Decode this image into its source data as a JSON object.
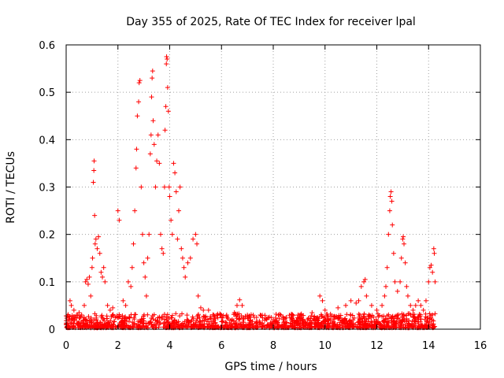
{
  "chart_data": {
    "type": "scatter",
    "title": "Day 355 of 2025, Rate Of TEC Index for receiver lpal",
    "xlabel": "GPS time / hours",
    "ylabel": "ROTI / TECUs",
    "xlim": [
      0,
      16
    ],
    "ylim": [
      0,
      0.6
    ],
    "x_ticks": [
      0,
      2,
      4,
      6,
      8,
      10,
      12,
      14,
      16
    ],
    "x_tick_labels": [
      "0",
      "2",
      "4",
      "6",
      "8",
      "10",
      "12",
      "14",
      "16"
    ],
    "y_ticks": [
      0,
      0.1,
      0.2,
      0.3,
      0.4,
      0.5,
      0.6
    ],
    "y_tick_labels": [
      "0",
      "0.1",
      "0.2",
      "0.3",
      "0.4",
      "0.5",
      "0.6"
    ],
    "grid": true,
    "marker": "plus",
    "color": "#ff0000",
    "series": [
      {
        "name": "ROTI",
        "points": [
          [
            0.05,
            0.012
          ],
          [
            0.1,
            0.02
          ],
          [
            0.15,
            0.06
          ],
          [
            0.2,
            0.05
          ],
          [
            0.3,
            0.04
          ],
          [
            0.4,
            0.03
          ],
          [
            0.5,
            0.035
          ],
          [
            0.6,
            0.03
          ],
          [
            0.7,
            0.05
          ],
          [
            0.75,
            0.1
          ],
          [
            0.8,
            0.105
          ],
          [
            0.85,
            0.095
          ],
          [
            0.9,
            0.11
          ],
          [
            0.95,
            0.07
          ],
          [
            1.0,
            0.13
          ],
          [
            1.02,
            0.15
          ],
          [
            1.05,
            0.31
          ],
          [
            1.07,
            0.335
          ],
          [
            1.08,
            0.355
          ],
          [
            1.1,
            0.24
          ],
          [
            1.12,
            0.18
          ],
          [
            1.15,
            0.19
          ],
          [
            1.2,
            0.17
          ],
          [
            1.25,
            0.195
          ],
          [
            1.3,
            0.16
          ],
          [
            1.35,
            0.12
          ],
          [
            1.4,
            0.11
          ],
          [
            1.45,
            0.13
          ],
          [
            1.5,
            0.1
          ],
          [
            1.6,
            0.05
          ],
          [
            1.7,
            0.04
          ],
          [
            1.8,
            0.045
          ],
          [
            2.0,
            0.25
          ],
          [
            2.05,
            0.23
          ],
          [
            2.2,
            0.06
          ],
          [
            2.3,
            0.05
          ],
          [
            2.4,
            0.1
          ],
          [
            2.5,
            0.09
          ],
          [
            2.55,
            0.13
          ],
          [
            2.6,
            0.18
          ],
          [
            2.65,
            0.25
          ],
          [
            2.7,
            0.34
          ],
          [
            2.72,
            0.38
          ],
          [
            2.75,
            0.45
          ],
          [
            2.8,
            0.48
          ],
          [
            2.82,
            0.52
          ],
          [
            2.85,
            0.525
          ],
          [
            2.9,
            0.3
          ],
          [
            2.95,
            0.2
          ],
          [
            3.0,
            0.14
          ],
          [
            3.05,
            0.11
          ],
          [
            3.1,
            0.07
          ],
          [
            3.15,
            0.15
          ],
          [
            3.2,
            0.2
          ],
          [
            3.25,
            0.37
          ],
          [
            3.28,
            0.41
          ],
          [
            3.3,
            0.49
          ],
          [
            3.32,
            0.53
          ],
          [
            3.34,
            0.545
          ],
          [
            3.36,
            0.44
          ],
          [
            3.4,
            0.39
          ],
          [
            3.45,
            0.3
          ],
          [
            3.5,
            0.355
          ],
          [
            3.55,
            0.41
          ],
          [
            3.6,
            0.35
          ],
          [
            3.65,
            0.2
          ],
          [
            3.7,
            0.17
          ],
          [
            3.75,
            0.16
          ],
          [
            3.8,
            0.3
          ],
          [
            3.82,
            0.42
          ],
          [
            3.85,
            0.47
          ],
          [
            3.87,
            0.56
          ],
          [
            3.88,
            0.575
          ],
          [
            3.9,
            0.57
          ],
          [
            3.92,
            0.51
          ],
          [
            3.95,
            0.46
          ],
          [
            3.98,
            0.3
          ],
          [
            4.0,
            0.28
          ],
          [
            4.05,
            0.23
          ],
          [
            4.1,
            0.2
          ],
          [
            4.15,
            0.35
          ],
          [
            4.2,
            0.33
          ],
          [
            4.25,
            0.29
          ],
          [
            4.3,
            0.19
          ],
          [
            4.35,
            0.25
          ],
          [
            4.4,
            0.3
          ],
          [
            4.45,
            0.17
          ],
          [
            4.5,
            0.15
          ],
          [
            4.55,
            0.13
          ],
          [
            4.6,
            0.11
          ],
          [
            4.7,
            0.14
          ],
          [
            4.8,
            0.15
          ],
          [
            4.9,
            0.19
          ],
          [
            5.0,
            0.2
          ],
          [
            5.05,
            0.18
          ],
          [
            5.1,
            0.07
          ],
          [
            5.2,
            0.045
          ],
          [
            5.3,
            0.04
          ],
          [
            5.5,
            0.04
          ],
          [
            5.7,
            0.03
          ],
          [
            6.0,
            0.025
          ],
          [
            6.2,
            0.03
          ],
          [
            6.5,
            0.035
          ],
          [
            6.6,
            0.05
          ],
          [
            6.7,
            0.062
          ],
          [
            6.8,
            0.05
          ],
          [
            7.0,
            0.03
          ],
          [
            7.5,
            0.03
          ],
          [
            8.0,
            0.02
          ],
          [
            8.5,
            0.025
          ],
          [
            9.0,
            0.03
          ],
          [
            9.5,
            0.035
          ],
          [
            9.8,
            0.07
          ],
          [
            9.9,
            0.06
          ],
          [
            10.0,
            0.04
          ],
          [
            10.5,
            0.045
          ],
          [
            10.8,
            0.05
          ],
          [
            11.0,
            0.06
          ],
          [
            11.2,
            0.055
          ],
          [
            11.3,
            0.06
          ],
          [
            11.4,
            0.09
          ],
          [
            11.5,
            0.1
          ],
          [
            11.55,
            0.105
          ],
          [
            11.6,
            0.07
          ],
          [
            11.8,
            0.05
          ],
          [
            12.0,
            0.04
          ],
          [
            12.2,
            0.05
          ],
          [
            12.3,
            0.07
          ],
          [
            12.35,
            0.09
          ],
          [
            12.4,
            0.13
          ],
          [
            12.45,
            0.2
          ],
          [
            12.5,
            0.25
          ],
          [
            12.52,
            0.28
          ],
          [
            12.55,
            0.29
          ],
          [
            12.58,
            0.27
          ],
          [
            12.6,
            0.22
          ],
          [
            12.65,
            0.16
          ],
          [
            12.7,
            0.1
          ],
          [
            12.8,
            0.08
          ],
          [
            12.9,
            0.1
          ],
          [
            12.95,
            0.15
          ],
          [
            13.0,
            0.19
          ],
          [
            13.02,
            0.195
          ],
          [
            13.05,
            0.18
          ],
          [
            13.1,
            0.14
          ],
          [
            13.15,
            0.09
          ],
          [
            13.2,
            0.07
          ],
          [
            13.3,
            0.05
          ],
          [
            13.4,
            0.04
          ],
          [
            13.5,
            0.05
          ],
          [
            13.6,
            0.06
          ],
          [
            13.7,
            0.05
          ],
          [
            13.8,
            0.04
          ],
          [
            13.9,
            0.06
          ],
          [
            14.0,
            0.1
          ],
          [
            14.05,
            0.13
          ],
          [
            14.1,
            0.135
          ],
          [
            14.15,
            0.12
          ],
          [
            14.2,
            0.17
          ],
          [
            14.22,
            0.16
          ],
          [
            14.25,
            0.1
          ]
        ]
      }
    ]
  }
}
